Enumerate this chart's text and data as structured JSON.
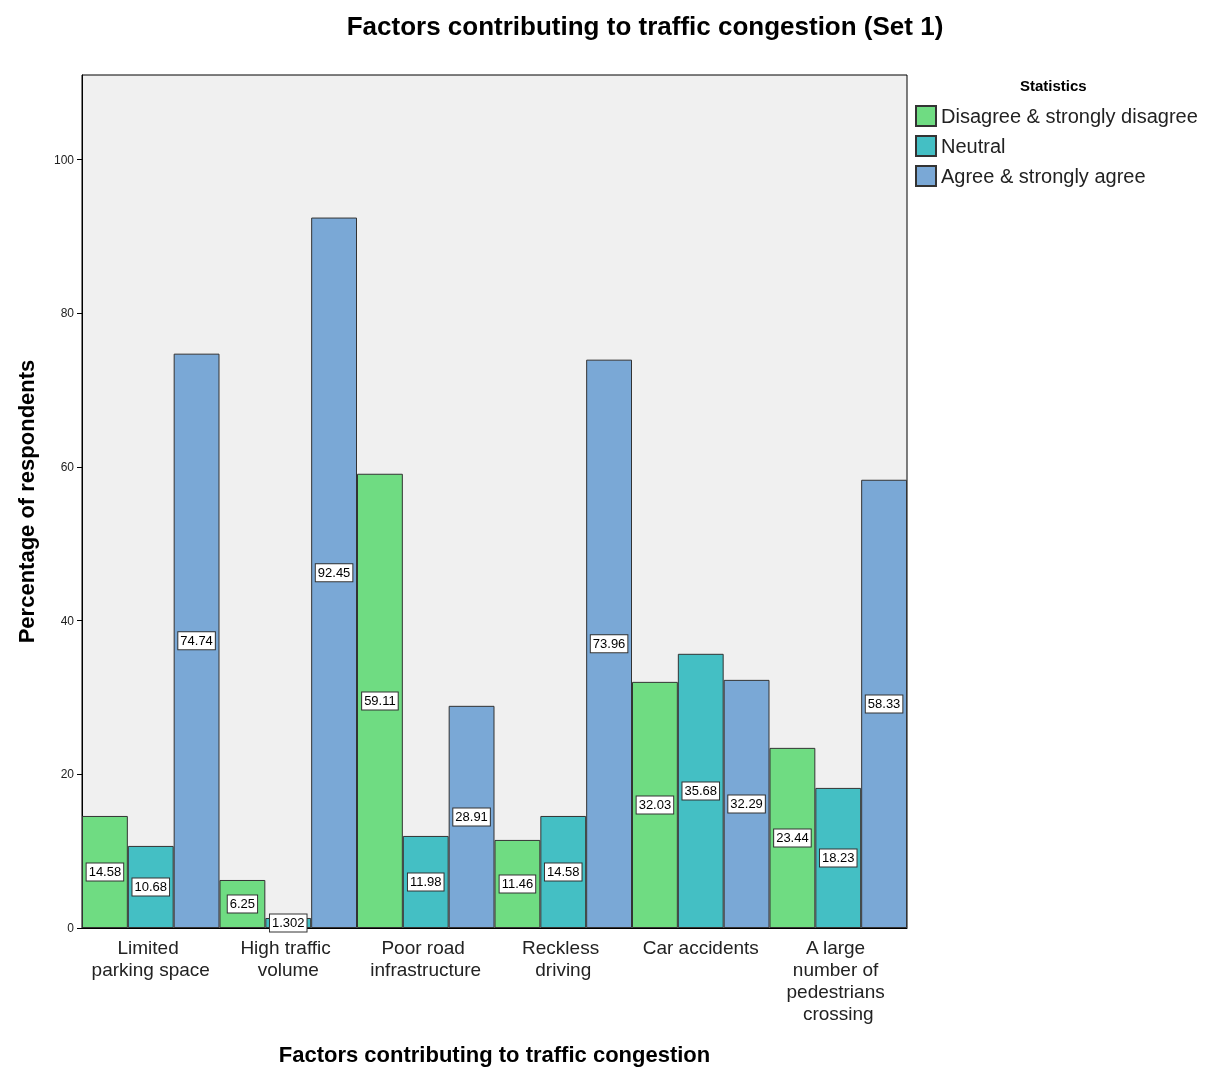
{
  "chart_data": {
    "type": "bar",
    "title": "Factors contributing to traffic congestion (Set 1)",
    "xlabel": "Factors contributing to traffic congestion",
    "ylabel": "Percentage of respondents",
    "legend_title": "Statistics",
    "categories": [
      "Limited parking space",
      "High traffic volume",
      "Poor road infrastructure",
      "Reckless driving",
      "Car accidents",
      "A large number of pedestrians crossing"
    ],
    "series": [
      {
        "name": "Disagree & strongly disagree",
        "color": "#6fdc82",
        "values": [
          14.58,
          6.25,
          59.11,
          11.46,
          32.03,
          23.44
        ]
      },
      {
        "name": "Neutral",
        "color": "#44bfc4",
        "values": [
          10.68,
          1.302,
          11.98,
          14.58,
          35.68,
          18.23
        ]
      },
      {
        "name": "Agree & strongly agree",
        "color": "#7aa8d6",
        "values": [
          74.74,
          92.45,
          28.91,
          73.96,
          32.29,
          58.33
        ]
      }
    ],
    "ylim": [
      0,
      111
    ],
    "yticks": [
      0,
      20,
      40,
      60,
      80,
      100
    ],
    "grid": false,
    "legend": "top right",
    "data_labels": true
  }
}
